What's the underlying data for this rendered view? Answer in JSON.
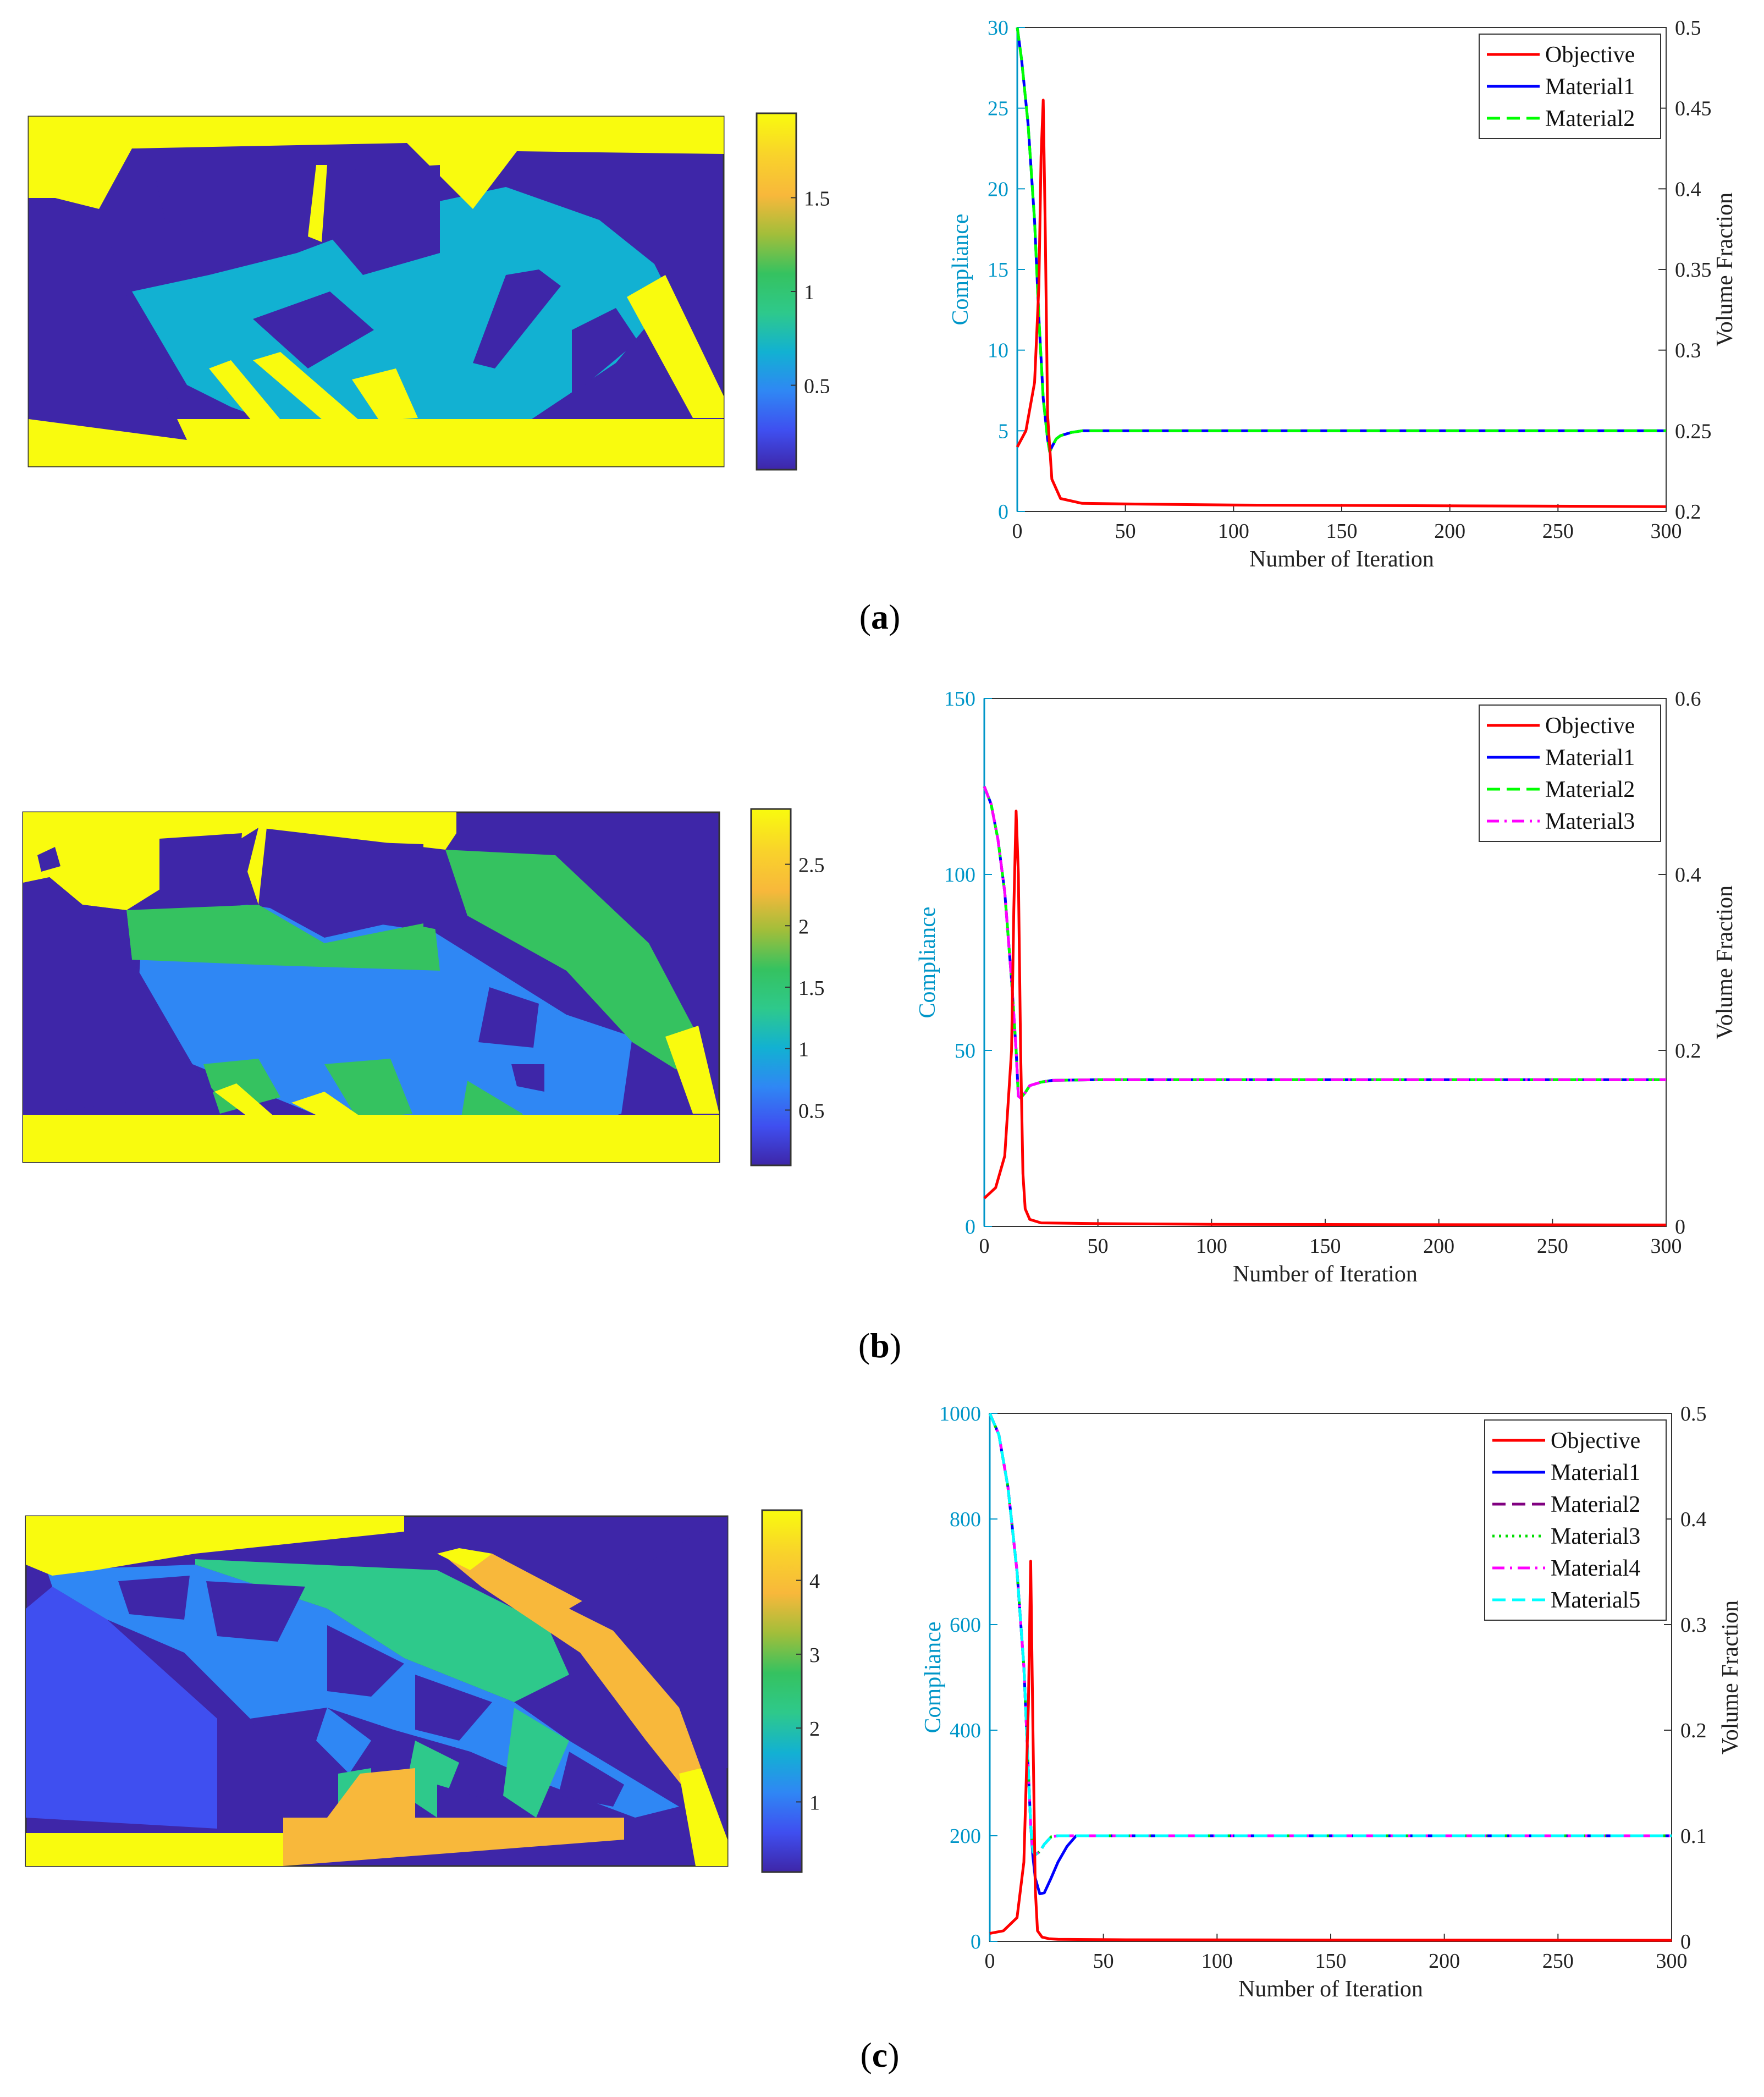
{
  "colors": {
    "viridis": [
      "#3e26a8",
      "#3f4ff0",
      "#2f87f4",
      "#12b1d2",
      "#2ec98b",
      "#35c260",
      "#a2be3a",
      "#f8b83b",
      "#f9d22b",
      "#f9fb0e"
    ],
    "axis_left": "#0096c8",
    "axis_right": "#000000",
    "objective": "#ff0000",
    "material1": "#0000ff",
    "material2_a_b": "#00ff00",
    "material3_b": "#ff00ff",
    "material2_c": "#800080",
    "material3_c": "#00dd00",
    "material4_c": "#ff00ff",
    "material5_c": "#00ffff"
  },
  "panels": [
    {
      "caption_letter": "a",
      "colorbar": {
        "ticks": [
          "0.5",
          "1",
          "1.5"
        ],
        "values": [
          0.5,
          1,
          1.5
        ],
        "range": [
          0.05,
          1.95
        ]
      },
      "chart_data": {
        "type": "line",
        "xlabel": "Number of Iteration",
        "ylabel_left": "Compliance",
        "ylabel_right": "Volume Fraction",
        "xlim": [
          0,
          300
        ],
        "ylim_left": [
          0,
          30
        ],
        "ylim_right": [
          0.2,
          0.5
        ],
        "xticks": [
          "0",
          "50",
          "100",
          "150",
          "200",
          "250",
          "300"
        ],
        "yticks_left": [
          "0",
          "5",
          "10",
          "15",
          "20",
          "25",
          "30"
        ],
        "yticks_right": [
          "0.2",
          "0.25",
          "0.3",
          "0.35",
          "0.4",
          "0.45",
          "0.5"
        ],
        "legend_position": "top-right",
        "series": [
          {
            "name": "Objective",
            "axis": "left",
            "style": "solid",
            "color": "#ff0000",
            "x": [
              0,
              4,
              8,
              10,
              11,
              12,
              13,
              14,
              16,
              20,
              30,
              60,
              100,
              200,
              300
            ],
            "y": [
              4,
              5,
              8,
              14,
              22,
              25.5,
              17,
              6,
              2,
              0.8,
              0.5,
              0.45,
              0.4,
              0.35,
              0.3
            ]
          },
          {
            "name": "Material1",
            "axis": "right",
            "style": "solid",
            "color": "#0000ff",
            "x": [
              0,
              2,
              5,
              8,
              10,
              12,
              14,
              15,
              16,
              18,
              20,
              25,
              30,
              50,
              100,
              300
            ],
            "y": [
              0.5,
              0.48,
              0.44,
              0.38,
              0.32,
              0.27,
              0.245,
              0.237,
              0.24,
              0.245,
              0.247,
              0.249,
              0.25,
              0.25,
              0.25,
              0.25
            ]
          },
          {
            "name": "Material2",
            "axis": "right",
            "style": "dashed",
            "color": "#00ff00",
            "x": [
              0,
              2,
              5,
              8,
              10,
              12,
              14,
              15,
              16,
              18,
              20,
              25,
              30,
              50,
              100,
              300
            ],
            "y": [
              0.5,
              0.48,
              0.44,
              0.38,
              0.32,
              0.27,
              0.245,
              0.237,
              0.24,
              0.245,
              0.247,
              0.249,
              0.25,
              0.25,
              0.25,
              0.25
            ]
          }
        ]
      }
    },
    {
      "caption_letter": "b",
      "colorbar": {
        "ticks": [
          "0.5",
          "1",
          "1.5",
          "2",
          "2.5"
        ],
        "values": [
          0.5,
          1,
          1.5,
          2,
          2.5
        ],
        "range": [
          0.05,
          2.95
        ]
      },
      "chart_data": {
        "type": "line",
        "xlabel": "Number of Iteration",
        "ylabel_left": "Compliance",
        "ylabel_right": "Volume Fraction",
        "xlim": [
          0,
          300
        ],
        "ylim_left": [
          0,
          150
        ],
        "ylim_right": [
          0,
          0.6
        ],
        "xticks": [
          "0",
          "50",
          "100",
          "150",
          "200",
          "250",
          "300"
        ],
        "yticks_left": [
          "0",
          "50",
          "100",
          "150"
        ],
        "yticks_right": [
          "0",
          "0.2",
          "0.4",
          "0.6"
        ],
        "legend_position": "top-right",
        "series": [
          {
            "name": "Objective",
            "axis": "left",
            "style": "solid",
            "color": "#ff0000",
            "x": [
              0,
              5,
              9,
              12,
              13,
              14,
              15,
              16,
              17,
              18,
              20,
              25,
              50,
              100,
              300
            ],
            "y": [
              8,
              11,
              20,
              50,
              90,
              118,
              100,
              50,
              15,
              5,
              2,
              1,
              0.8,
              0.6,
              0.4
            ]
          },
          {
            "name": "Material1",
            "axis": "right",
            "style": "solid",
            "color": "#0000ff",
            "x": [
              0,
              3,
              6,
              9,
              12,
              14,
              15,
              16,
              18,
              20,
              25,
              30,
              50,
              100,
              300
            ],
            "y": [
              0.5,
              0.48,
              0.44,
              0.38,
              0.28,
              0.2,
              0.148,
              0.146,
              0.152,
              0.16,
              0.164,
              0.166,
              0.1667,
              0.1667,
              0.1667
            ]
          },
          {
            "name": "Material2",
            "axis": "right",
            "style": "dashed",
            "color": "#00ff00",
            "x": [
              0,
              3,
              6,
              9,
              12,
              14,
              15,
              16,
              18,
              20,
              25,
              30,
              50,
              100,
              300
            ],
            "y": [
              0.5,
              0.48,
              0.44,
              0.38,
              0.28,
              0.2,
              0.148,
              0.146,
              0.152,
              0.16,
              0.164,
              0.166,
              0.1667,
              0.1667,
              0.1667
            ]
          },
          {
            "name": "Material3",
            "axis": "right",
            "style": "dashdot",
            "color": "#ff00ff",
            "x": [
              0,
              3,
              6,
              9,
              12,
              14,
              15,
              16,
              18,
              20,
              25,
              30,
              50,
              100,
              300
            ],
            "y": [
              0.5,
              0.48,
              0.44,
              0.38,
              0.28,
              0.2,
              0.148,
              0.146,
              0.152,
              0.16,
              0.164,
              0.166,
              0.1667,
              0.1667,
              0.1667
            ]
          }
        ]
      }
    },
    {
      "caption_letter": "c",
      "colorbar": {
        "ticks": [
          "1",
          "2",
          "3",
          "4"
        ],
        "values": [
          1,
          2,
          3,
          4
        ],
        "range": [
          0.05,
          4.95
        ]
      },
      "chart_data": {
        "type": "line",
        "xlabel": "Number of Iteration",
        "ylabel_left": "Compliance",
        "ylabel_right": "Volume Fraction",
        "xlim": [
          0,
          300
        ],
        "ylim_left": [
          0,
          1000
        ],
        "ylim_right": [
          0,
          0.5
        ],
        "xticks": [
          "0",
          "50",
          "100",
          "150",
          "200",
          "250",
          "300"
        ],
        "yticks_left": [
          "0",
          "200",
          "400",
          "600",
          "800",
          "1000"
        ],
        "yticks_right": [
          "0",
          "0.1",
          "0.2",
          "0.3",
          "0.4",
          "0.5"
        ],
        "legend_position": "top-right",
        "series": [
          {
            "name": "Objective",
            "axis": "left",
            "style": "solid",
            "color": "#ff0000",
            "x": [
              0,
              6,
              12,
              15,
              17,
              18,
              19,
              20,
              21,
              23,
              26,
              30,
              60,
              150,
              300
            ],
            "y": [
              15,
              20,
              45,
              150,
              450,
              720,
              400,
              100,
              20,
              8,
              5,
              4,
              3,
              2.5,
              2
            ]
          },
          {
            "name": "Material1",
            "axis": "right",
            "style": "solid",
            "color": "#0000ff",
            "x": [
              0,
              4,
              8,
              12,
              15,
              17,
              18,
              19,
              20,
              22,
              24,
              27,
              30,
              34,
              38,
              50,
              100,
              300
            ],
            "y": [
              0.5,
              0.48,
              0.43,
              0.35,
              0.26,
              0.16,
              0.11,
              0.08,
              0.06,
              0.045,
              0.046,
              0.06,
              0.075,
              0.09,
              0.1,
              0.1,
              0.1,
              0.1
            ]
          },
          {
            "name": "Material2",
            "axis": "right",
            "style": "dashed",
            "color": "#800080",
            "x": [
              0,
              4,
              8,
              12,
              15,
              17,
              18,
              19,
              20,
              22,
              24,
              27,
              30,
              50,
              100,
              300
            ],
            "y": [
              0.5,
              0.48,
              0.43,
              0.35,
              0.26,
              0.16,
              0.11,
              0.085,
              0.082,
              0.085,
              0.092,
              0.099,
              0.1,
              0.1,
              0.1,
              0.1
            ]
          },
          {
            "name": "Material3",
            "axis": "right",
            "style": "dotted",
            "color": "#00dd00",
            "x": [
              0,
              4,
              8,
              12,
              15,
              17,
              18,
              19,
              20,
              22,
              24,
              27,
              30,
              50,
              100,
              300
            ],
            "y": [
              0.5,
              0.48,
              0.43,
              0.35,
              0.26,
              0.16,
              0.11,
              0.085,
              0.082,
              0.085,
              0.092,
              0.099,
              0.1,
              0.1,
              0.1,
              0.1
            ]
          },
          {
            "name": "Material4",
            "axis": "right",
            "style": "dashdot",
            "color": "#ff00ff",
            "x": [
              0,
              4,
              8,
              12,
              15,
              17,
              18,
              19,
              20,
              22,
              24,
              27,
              30,
              50,
              100,
              300
            ],
            "y": [
              0.5,
              0.48,
              0.43,
              0.35,
              0.26,
              0.16,
              0.11,
              0.085,
              0.082,
              0.085,
              0.092,
              0.099,
              0.1,
              0.1,
              0.1,
              0.1
            ]
          },
          {
            "name": "Material5",
            "axis": "right",
            "style": "dashed",
            "color": "#00ffff",
            "x": [
              0,
              4,
              8,
              12,
              15,
              17,
              18,
              19,
              20,
              22,
              24,
              27,
              30,
              50,
              100,
              300
            ],
            "y": [
              0.5,
              0.48,
              0.43,
              0.35,
              0.26,
              0.16,
              0.11,
              0.085,
              0.082,
              0.085,
              0.092,
              0.099,
              0.1,
              0.1,
              0.1,
              0.1
            ]
          }
        ]
      }
    }
  ]
}
